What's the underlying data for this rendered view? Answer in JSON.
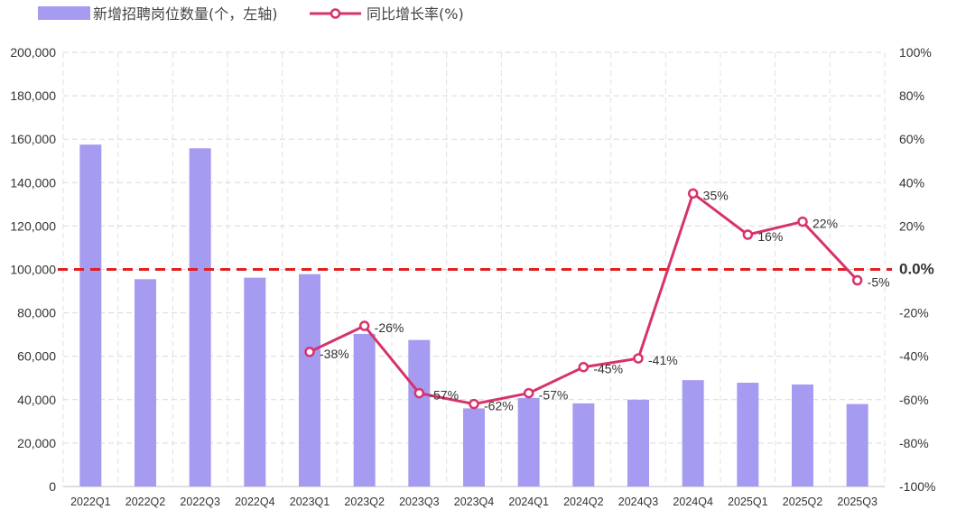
{
  "chart_data": {
    "type": "bar+line",
    "categories": [
      "2022Q1",
      "2022Q2",
      "2022Q3",
      "2022Q4",
      "2023Q1",
      "2023Q2",
      "2023Q3",
      "2023Q4",
      "2024Q1",
      "2024Q2",
      "2024Q3",
      "2024Q4",
      "2025Q1",
      "2025Q2",
      "2025Q3"
    ],
    "series": [
      {
        "name": "新增招聘岗位数量(个，左轴)",
        "type": "bar",
        "axis": "left",
        "color": "#a59bf0",
        "values": [
          157500,
          95500,
          155800,
          96200,
          97800,
          70300,
          67500,
          36000,
          40800,
          38300,
          40000,
          49000,
          47800,
          47000,
          38000
        ]
      },
      {
        "name": "同比增长率(%)",
        "type": "line",
        "axis": "right",
        "color": "#d6336c",
        "values": [
          null,
          null,
          null,
          null,
          -38,
          -26,
          -57,
          -62,
          -57,
          -45,
          -41,
          35,
          16,
          22,
          -5
        ],
        "labels": [
          null,
          null,
          null,
          null,
          "-38%",
          "-26%",
          "-57%",
          "-62%",
          "-57%",
          "-45%",
          "-41%",
          "35%",
          "16%",
          "22%",
          "-5%"
        ]
      }
    ],
    "y_left": {
      "min": 0,
      "max": 200000,
      "step": 20000,
      "tick_labels": [
        "0",
        "20,000",
        "40,000",
        "60,000",
        "80,000",
        "100,000",
        "120,000",
        "140,000",
        "160,000",
        "180,000",
        "200,000"
      ]
    },
    "y_right": {
      "min": -100,
      "max": 100,
      "step": 20,
      "tick_labels": [
        "-100%",
        "-80%",
        "-60%",
        "-40%",
        "-20%",
        "0.0%",
        "20%",
        "40%",
        "60%",
        "80%",
        "100%"
      ]
    },
    "reference_line": {
      "value": 0,
      "axis": "right",
      "label": "0.0%",
      "color": "#e02020",
      "style": "dashed"
    },
    "grid": {
      "vertical": true,
      "horizontal": true
    },
    "legend": {
      "position": "top-left"
    }
  }
}
